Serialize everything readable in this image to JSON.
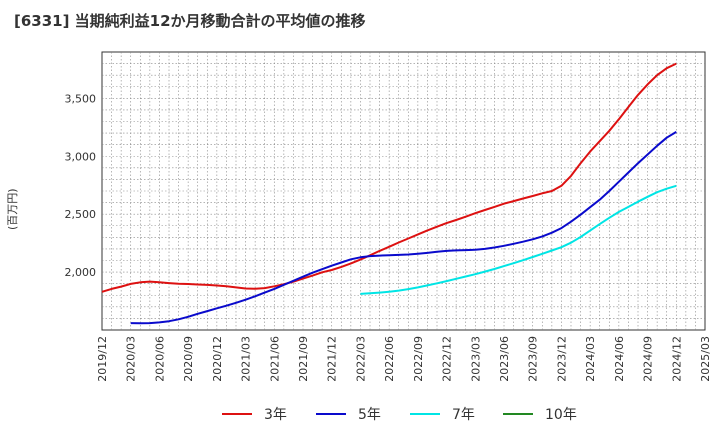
{
  "title": "[6331]  当期純利益12か月移動合計の平均値の推移",
  "chart_data": {
    "type": "line",
    "ylabel": "(百万円)",
    "xlabel": "",
    "ylim": [
      1500,
      3900
    ],
    "yticks": [
      2000,
      2500,
      3000,
      3500
    ],
    "ytick_labels": [
      "2,000",
      "2,500",
      "3,000",
      "3,500"
    ],
    "xticks": [
      "2019/12",
      "2020/03",
      "2020/06",
      "2020/09",
      "2020/12",
      "2021/03",
      "2021/06",
      "2021/09",
      "2021/12",
      "2022/03",
      "2022/06",
      "2022/09",
      "2022/12",
      "2023/03",
      "2023/06",
      "2023/09",
      "2023/12",
      "2024/03",
      "2024/06",
      "2024/09",
      "2024/12",
      "2025/03"
    ],
    "grid": true,
    "legend_position": "bottom",
    "series": [
      {
        "name": "3年",
        "color": "#dd1111",
        "x": [
          "2019/12",
          "2020/01",
          "2020/02",
          "2020/03",
          "2020/04",
          "2020/05",
          "2020/06",
          "2020/07",
          "2020/08",
          "2020/09",
          "2020/10",
          "2020/11",
          "2020/12",
          "2021/01",
          "2021/02",
          "2021/03",
          "2021/04",
          "2021/05",
          "2021/06",
          "2021/07",
          "2021/08",
          "2021/09",
          "2021/10",
          "2021/11",
          "2021/12",
          "2022/01",
          "2022/02",
          "2022/03",
          "2022/04",
          "2022/05",
          "2022/06",
          "2022/07",
          "2022/08",
          "2022/09",
          "2022/10",
          "2022/11",
          "2022/12",
          "2023/01",
          "2023/02",
          "2023/03",
          "2023/04",
          "2023/05",
          "2023/06",
          "2023/07",
          "2023/08",
          "2023/09",
          "2023/10",
          "2023/11",
          "2023/12",
          "2024/01",
          "2024/02",
          "2024/03",
          "2024/04",
          "2024/05",
          "2024/06",
          "2024/07",
          "2024/08",
          "2024/09",
          "2024/10",
          "2024/11",
          "2024/12"
        ],
        "values": [
          1830,
          1855,
          1875,
          1898,
          1912,
          1918,
          1912,
          1905,
          1900,
          1897,
          1893,
          1889,
          1884,
          1877,
          1868,
          1858,
          1856,
          1862,
          1877,
          1895,
          1917,
          1944,
          1970,
          1998,
          2018,
          2045,
          2075,
          2108,
          2145,
          2183,
          2218,
          2255,
          2290,
          2325,
          2360,
          2392,
          2423,
          2450,
          2478,
          2508,
          2536,
          2563,
          2590,
          2613,
          2635,
          2657,
          2680,
          2700,
          2745,
          2830,
          2940,
          3040,
          3130,
          3220,
          3320,
          3425,
          3530,
          3620,
          3700,
          3760,
          3800
        ]
      },
      {
        "name": "5年",
        "color": "#0a0acc",
        "x": [
          "2020/03",
          "2020/04",
          "2020/05",
          "2020/06",
          "2020/07",
          "2020/08",
          "2020/09",
          "2020/10",
          "2020/11",
          "2020/12",
          "2021/01",
          "2021/02",
          "2021/03",
          "2021/04",
          "2021/05",
          "2021/06",
          "2021/07",
          "2021/08",
          "2021/09",
          "2021/10",
          "2021/11",
          "2021/12",
          "2022/01",
          "2022/02",
          "2022/03",
          "2022/04",
          "2022/05",
          "2022/06",
          "2022/07",
          "2022/08",
          "2022/09",
          "2022/10",
          "2022/11",
          "2022/12",
          "2023/01",
          "2023/02",
          "2023/03",
          "2023/04",
          "2023/05",
          "2023/06",
          "2023/07",
          "2023/08",
          "2023/09",
          "2023/10",
          "2023/11",
          "2023/12",
          "2024/01",
          "2024/02",
          "2024/03",
          "2024/04",
          "2024/05",
          "2024/06",
          "2024/07",
          "2024/08",
          "2024/09",
          "2024/10",
          "2024/11",
          "2024/12"
        ],
        "values": [
          1560,
          1558,
          1560,
          1566,
          1576,
          1592,
          1614,
          1640,
          1663,
          1687,
          1710,
          1735,
          1762,
          1791,
          1823,
          1855,
          1890,
          1925,
          1960,
          1995,
          2025,
          2055,
          2083,
          2110,
          2128,
          2138,
          2142,
          2145,
          2148,
          2152,
          2158,
          2166,
          2175,
          2183,
          2187,
          2190,
          2193,
          2200,
          2212,
          2227,
          2244,
          2262,
          2283,
          2308,
          2340,
          2380,
          2435,
          2495,
          2560,
          2625,
          2700,
          2780,
          2860,
          2940,
          3015,
          3090,
          3160,
          3210
        ]
      },
      {
        "name": "7年",
        "color": "#00e5e5",
        "x": [
          "2022/03",
          "2022/04",
          "2022/05",
          "2022/06",
          "2022/07",
          "2022/08",
          "2022/09",
          "2022/10",
          "2022/11",
          "2022/12",
          "2023/01",
          "2023/02",
          "2023/03",
          "2023/04",
          "2023/05",
          "2023/06",
          "2023/07",
          "2023/08",
          "2023/09",
          "2023/10",
          "2023/11",
          "2023/12",
          "2024/01",
          "2024/02",
          "2024/03",
          "2024/04",
          "2024/05",
          "2024/06",
          "2024/07",
          "2024/08",
          "2024/09",
          "2024/10",
          "2024/11",
          "2024/12"
        ],
        "values": [
          1812,
          1817,
          1823,
          1830,
          1840,
          1853,
          1868,
          1885,
          1903,
          1922,
          1942,
          1962,
          1982,
          2004,
          2027,
          2052,
          2077,
          2103,
          2130,
          2158,
          2186,
          2215,
          2254,
          2303,
          2358,
          2414,
          2469,
          2520,
          2563,
          2608,
          2650,
          2690,
          2720,
          2745
        ]
      },
      {
        "name": "10年",
        "color": "#228822",
        "x": [],
        "values": []
      }
    ]
  }
}
